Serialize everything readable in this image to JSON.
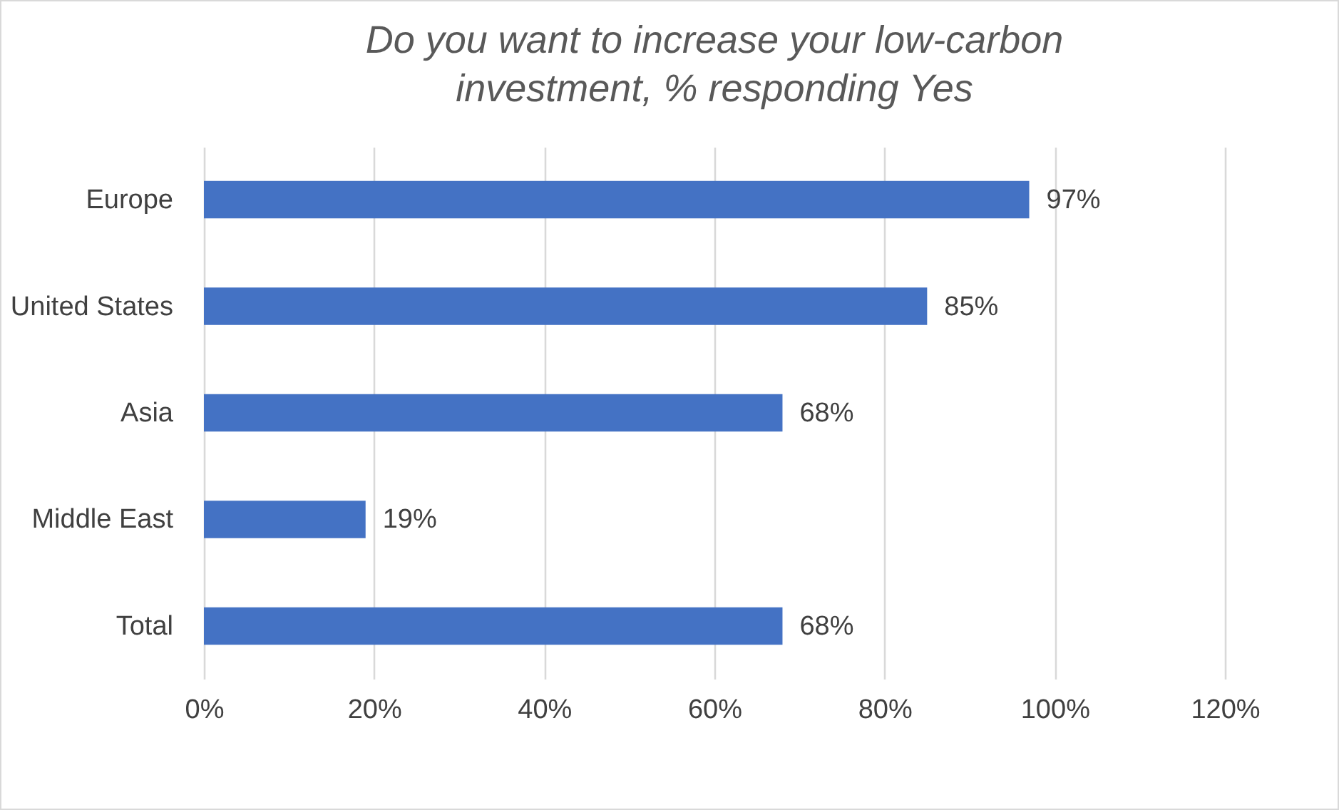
{
  "chart_data": {
    "type": "bar",
    "orientation": "horizontal",
    "title": "Do you want to increase your low-carbon investment, % responding Yes",
    "categories": [
      "Europe",
      "United States",
      "Asia",
      "Middle East",
      "Total"
    ],
    "values": [
      97,
      85,
      68,
      19,
      68
    ],
    "color": "#4472c4",
    "value_labels": [
      "97%",
      "85%",
      "68%",
      "19%",
      "68%"
    ],
    "xlim": [
      0,
      120
    ],
    "xticks": [
      {
        "value": 0,
        "label": "0%"
      },
      {
        "value": 20,
        "label": "20%"
      },
      {
        "value": 40,
        "label": "40%"
      },
      {
        "value": 60,
        "label": "60%"
      },
      {
        "value": 80,
        "label": "80%"
      },
      {
        "value": 100,
        "label": "100%"
      },
      {
        "value": 120,
        "label": "120%"
      }
    ],
    "grid": "x"
  }
}
